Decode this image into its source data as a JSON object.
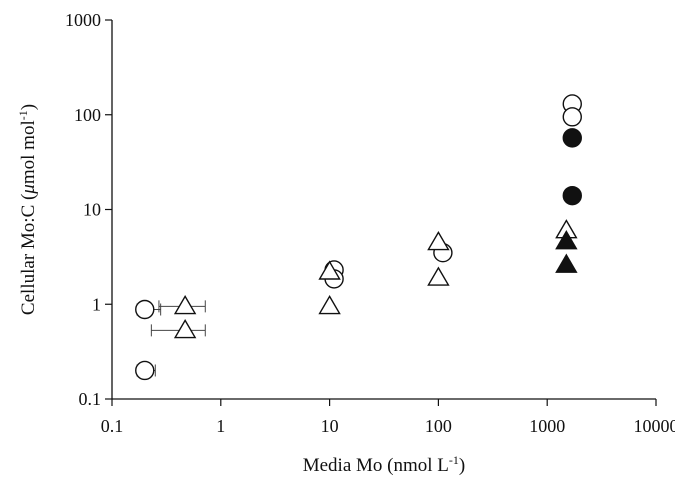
{
  "chart_data": {
    "type": "scatter",
    "title": "",
    "x_scale": "log",
    "y_scale": "log",
    "xlim": [
      0.1,
      10000
    ],
    "ylim": [
      0.1,
      1000
    ],
    "grid": false,
    "legend": "none",
    "x_ticks": [
      "0.1",
      "1",
      "10",
      "100",
      "1000",
      "10000"
    ],
    "y_ticks": [
      "0.1",
      "1",
      "10",
      "100",
      "1000"
    ],
    "xlabel": {
      "main": "Media Mo (nmol L",
      "sup": "-1",
      "end": ")"
    },
    "ylabel": {
      "main": "Cellular Mo:C (",
      "mu": "μ",
      "mid": "mol mol",
      "sup": "-1",
      "end": ")"
    },
    "series": [
      {
        "marker": "circle-open",
        "points": [
          {
            "x": 0.2,
            "y": 0.88,
            "xerr": [
              0.03,
              0.08
            ]
          },
          {
            "x": 0.2,
            "y": 0.2,
            "xerr": [
              0.03,
              0.05
            ]
          },
          {
            "x": 11,
            "y": 2.3
          },
          {
            "x": 11,
            "y": 1.85
          },
          {
            "x": 110,
            "y": 3.5
          },
          {
            "x": 1700,
            "y": 130
          },
          {
            "x": 1700,
            "y": 95
          }
        ]
      },
      {
        "marker": "circle-filled",
        "points": [
          {
            "x": 1700,
            "y": 57
          },
          {
            "x": 1700,
            "y": 14
          }
        ]
      },
      {
        "marker": "triangle-open",
        "points": [
          {
            "x": 0.47,
            "y": 0.95,
            "xerr": [
              0.2,
              0.25
            ]
          },
          {
            "x": 0.47,
            "y": 0.53,
            "xerr": [
              0.24,
              0.25
            ]
          },
          {
            "x": 10,
            "y": 2.2
          },
          {
            "x": 10,
            "y": 0.95
          },
          {
            "x": 100,
            "y": 4.5
          },
          {
            "x": 100,
            "y": 1.9
          },
          {
            "x": 1500,
            "y": 6
          }
        ]
      },
      {
        "marker": "triangle-filled",
        "points": [
          {
            "x": 1500,
            "y": 4.6
          },
          {
            "x": 1500,
            "y": 2.6
          }
        ]
      }
    ]
  },
  "colors": {
    "axis": "#111111",
    "marker_stroke": "#111111",
    "marker_fill": "#111111",
    "open_fill": "#ffffff",
    "errorbar": "#444444"
  }
}
